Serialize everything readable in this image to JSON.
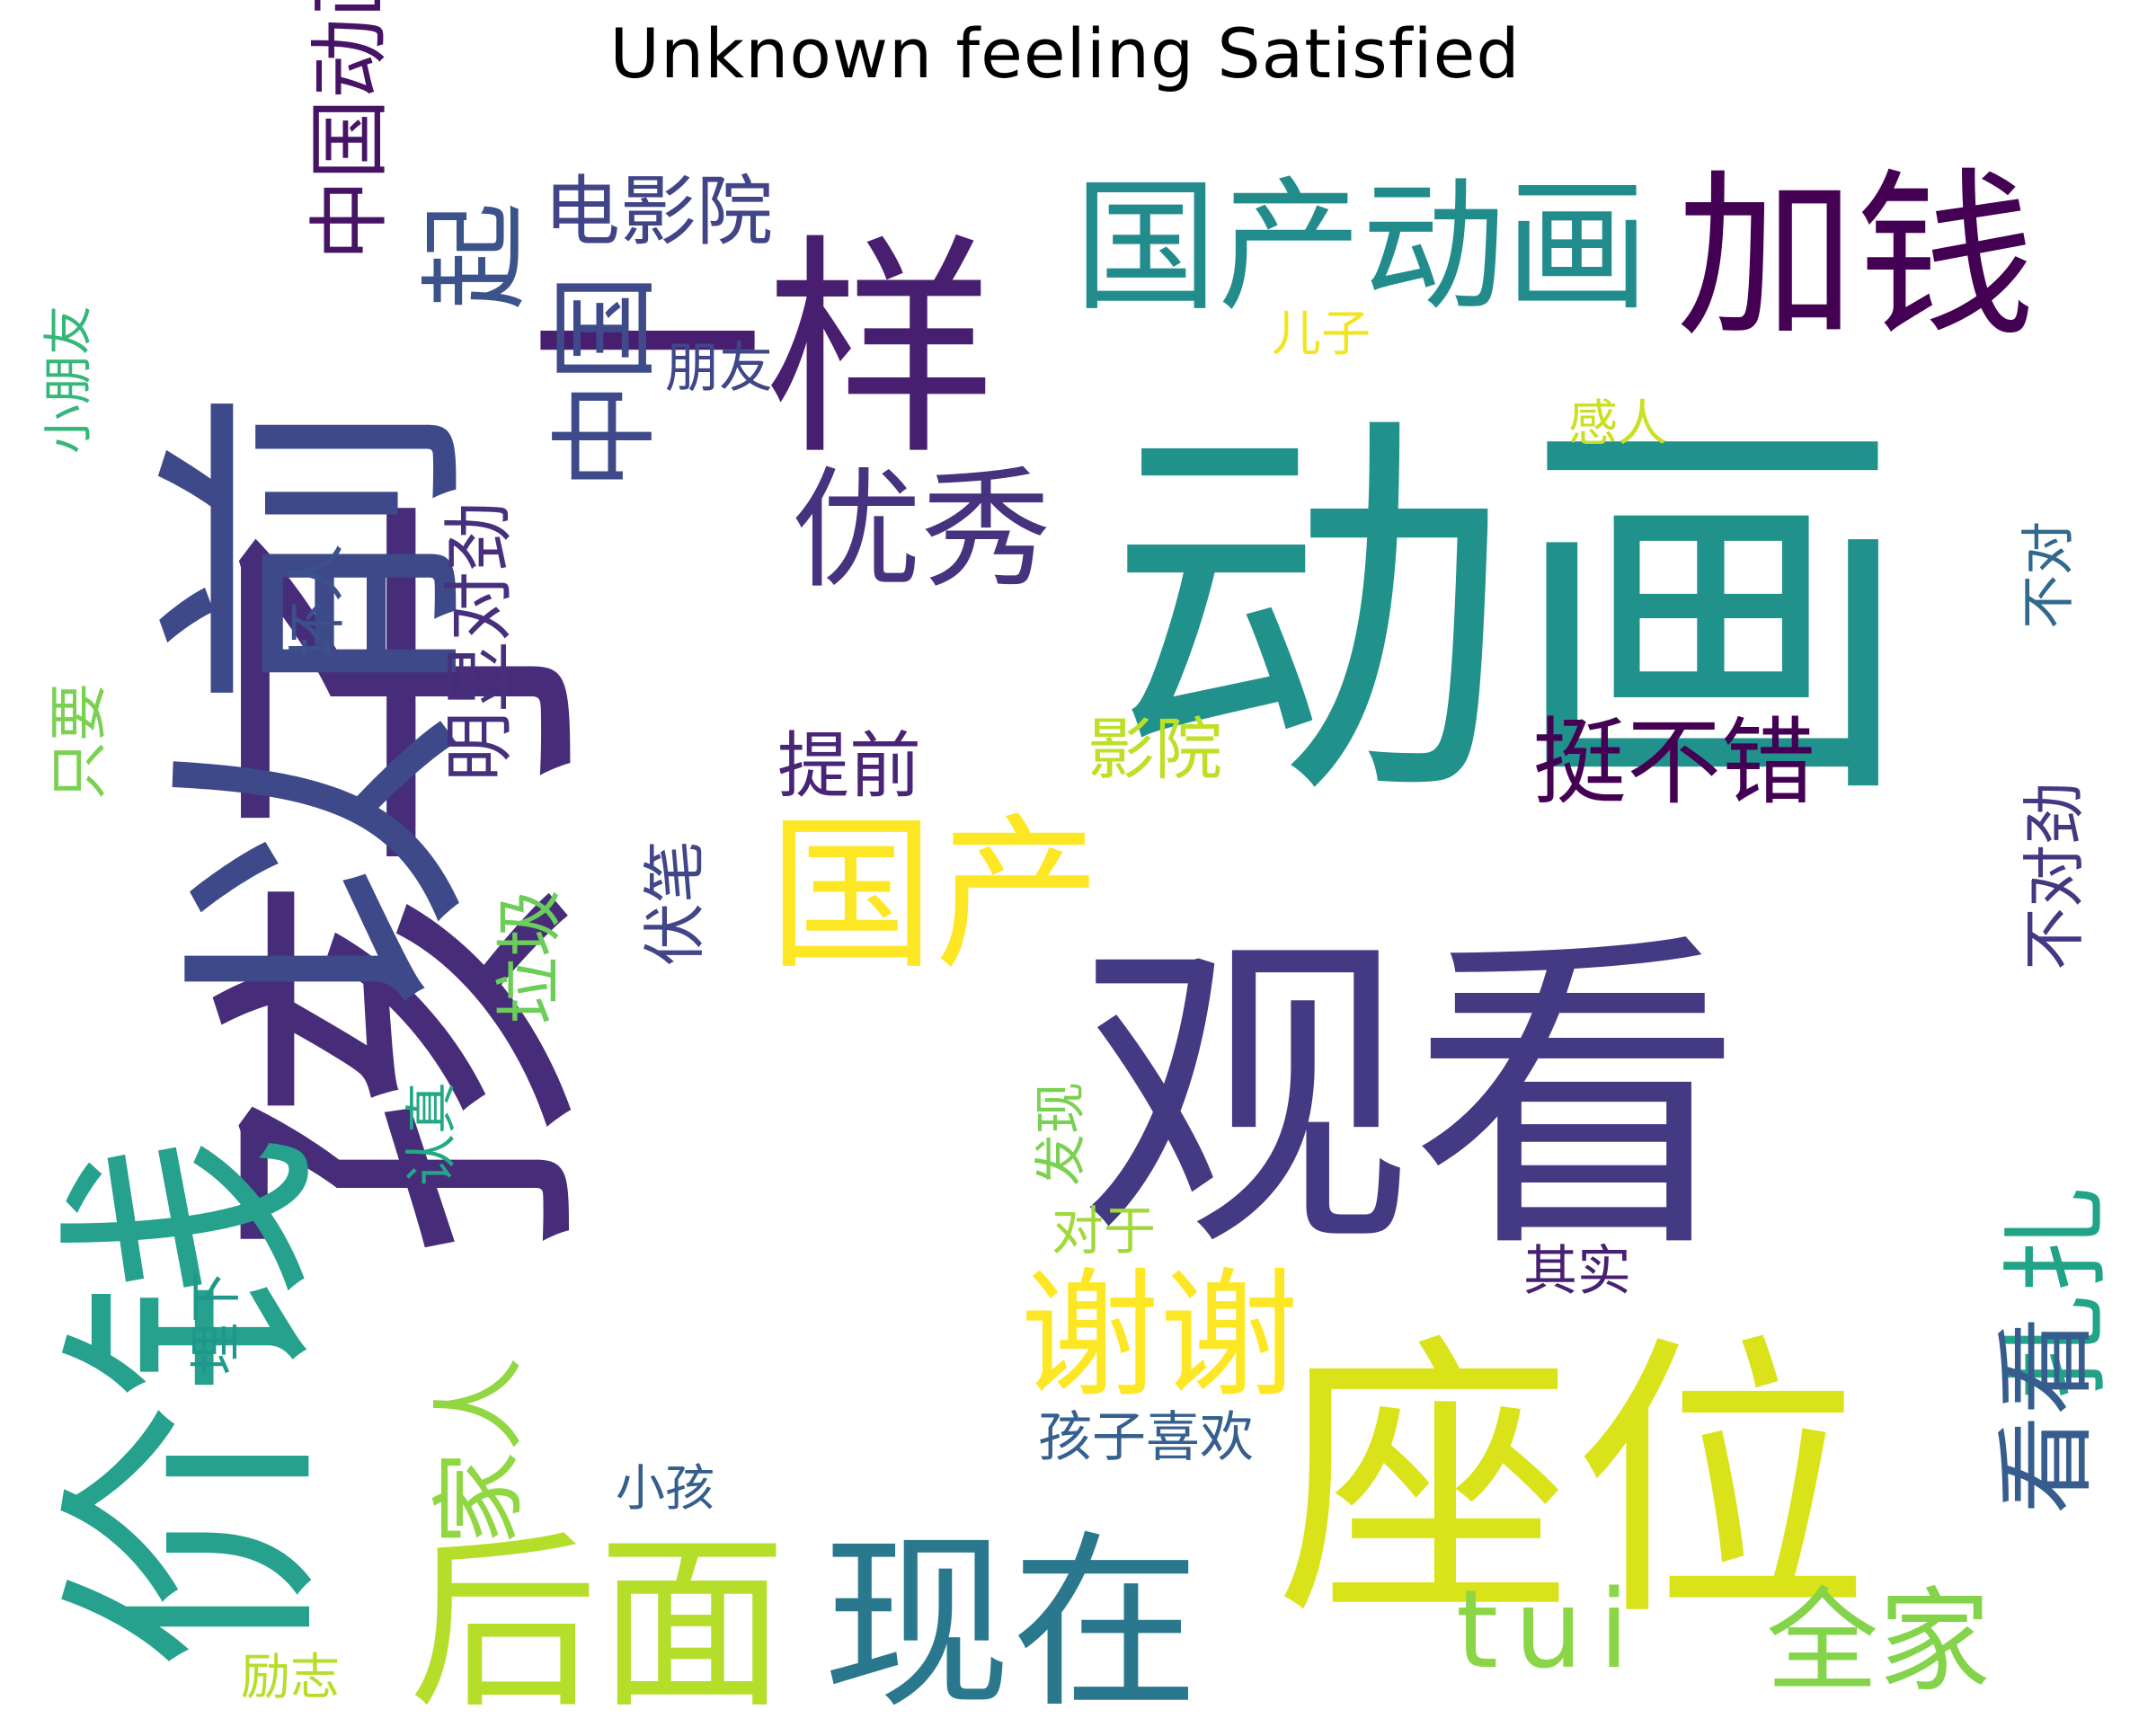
{
  "title": "Unknown feeling Satisfied",
  "words": [
    {
      "text": "孩子",
      "color": "#472c7a"
    },
    {
      "text": "动画",
      "color": "#21918c"
    },
    {
      "text": "观看",
      "color": "#443983"
    },
    {
      "text": "以前",
      "color": "#3e4989"
    },
    {
      "text": "座位",
      "color": "#dae319"
    },
    {
      "text": "价钱",
      "color": "#25a18e"
    },
    {
      "text": "一样",
      "color": "#481f70"
    },
    {
      "text": "现在",
      "color": "#2a788e"
    },
    {
      "text": "后面",
      "color": "#b5de2b"
    },
    {
      "text": "加钱",
      "color": "#440154"
    },
    {
      "text": "国产动画",
      "color": "#228c8d"
    },
    {
      "text": "国产",
      "color": "#fde725"
    },
    {
      "text": "谢谢",
      "color": "#fde725"
    },
    {
      "text": "优秀",
      "color": "#46327e"
    },
    {
      "text": "全家",
      "color": "#84d44b"
    },
    {
      "text": "扎扎",
      "color": "#20a386"
    },
    {
      "text": "tui",
      "color": "#8bd646"
    },
    {
      "text": "起",
      "color": "#3b528b"
    },
    {
      "text": "看看",
      "color": "#365d8d"
    },
    {
      "text": "挺不错",
      "color": "#440154"
    },
    {
      "text": "家人",
      "color": "#90d743"
    },
    {
      "text": "中国",
      "color": "#3e4a89"
    },
    {
      "text": "中国动画",
      "color": "#471365"
    },
    {
      "text": "电影院",
      "color": "#414487"
    },
    {
      "text": "明显对劲",
      "color": "#472f7d"
    },
    {
      "text": "垃圾",
      "color": "#6ccd5a"
    },
    {
      "text": "提前",
      "color": "#482576"
    },
    {
      "text": "伏笔",
      "color": "#404688"
    },
    {
      "text": "其实",
      "color": "#482071"
    },
    {
      "text": "孩子喜欢",
      "color": "#355f8d"
    },
    {
      "text": "影院",
      "color": "#bddf26"
    },
    {
      "text": "不对劲",
      "color": "#453882"
    },
    {
      "text": "不对",
      "color": "#31688e"
    },
    {
      "text": "发现",
      "color": "#7ad151"
    },
    {
      "text": "对于",
      "color": "#9fda3a"
    },
    {
      "text": "认真",
      "color": "#22a884"
    },
    {
      "text": "朋友",
      "color": "#3f4788"
    },
    {
      "text": "小孩",
      "color": "#355e8d"
    },
    {
      "text": "坏人",
      "color": "#3c508b"
    },
    {
      "text": "埋下",
      "color": "#1f988b"
    },
    {
      "text": "只要",
      "color": "#7ad151"
    },
    {
      "text": "小朋友",
      "color": "#35b779"
    },
    {
      "text": "儿子",
      "color": "#f1e51d"
    },
    {
      "text": "感人",
      "color": "#c8e020"
    },
    {
      "text": "励志",
      "color": "#b5de2b"
    }
  ]
}
